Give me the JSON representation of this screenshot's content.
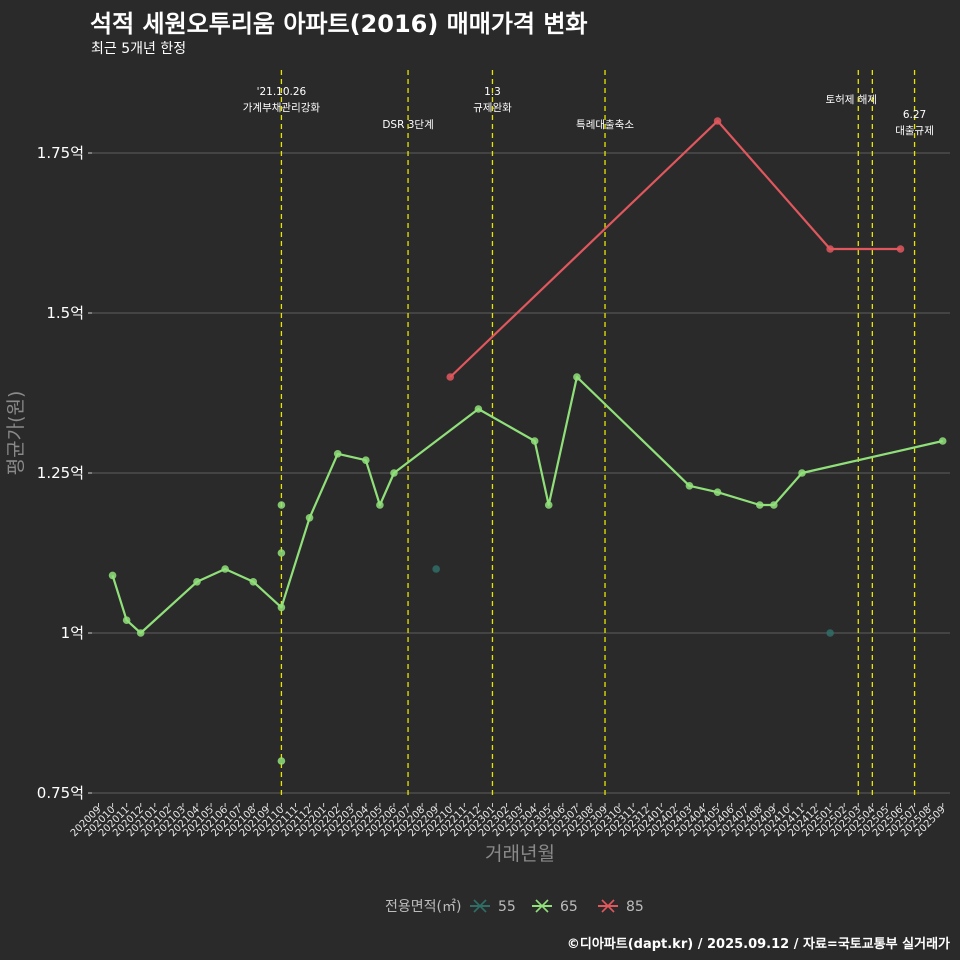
{
  "title": "석적 세원오투리움 아파트(2016) 매매가격 변화",
  "subtitle": "최근 5개년 한정",
  "caption": "©디아파트(dapt.kr) / 2025.09.12 / 자료=국토교통부 실거래가",
  "colors": {
    "background": "#2b2a2b",
    "grid": "#5f5f5f",
    "event_line": "#e5e500",
    "s55": "#2f6e66",
    "s65": "#90e07a",
    "s85": "#e0575d"
  },
  "chart_data": {
    "type": "line",
    "xlabel": "거래년월",
    "ylabel": "평균가(원)",
    "ylim": [
      0.75,
      1.84
    ],
    "yticks": [
      {
        "value": 0.75,
        "label": "0.75억"
      },
      {
        "value": 1.0,
        "label": "1억"
      },
      {
        "value": 1.25,
        "label": "1.25억"
      },
      {
        "value": 1.5,
        "label": "1.5억"
      },
      {
        "value": 1.75,
        "label": "1.75억"
      }
    ],
    "grid": true,
    "legend_position": "bottom",
    "legend_title": "전용면적(㎡)",
    "categories": [
      "202009",
      "202010",
      "202011",
      "202012",
      "202101",
      "202102",
      "202103",
      "202104",
      "202105",
      "202106",
      "202107",
      "202108",
      "202109",
      "202110",
      "202111",
      "202112",
      "202201",
      "202202",
      "202203",
      "202204",
      "202205",
      "202206",
      "202207",
      "202208",
      "202209",
      "202210",
      "202211",
      "202212",
      "202301",
      "202302",
      "202303",
      "202304",
      "202305",
      "202306",
      "202307",
      "202308",
      "202309",
      "202310",
      "202311",
      "202312",
      "202401",
      "202402",
      "202403",
      "202404",
      "202405",
      "202406",
      "202407",
      "202408",
      "202409",
      "202410",
      "202411",
      "202412",
      "202501",
      "202502",
      "202503",
      "202504",
      "202505",
      "202506",
      "202507",
      "202508",
      "202509"
    ],
    "series": [
      {
        "name": "55",
        "color": "#2f6e66",
        "line": false,
        "points": [
          {
            "x": "202209",
            "y": 1.1
          },
          {
            "x": "202501",
            "y": 1.0
          }
        ]
      },
      {
        "name": "65",
        "color": "#90e07a",
        "line": true,
        "points": [
          {
            "x": "202010",
            "y": 1.09
          },
          {
            "x": "202011",
            "y": 1.02
          },
          {
            "x": "202012",
            "y": 1.0
          },
          {
            "x": "202104",
            "y": 1.08
          },
          {
            "x": "202106",
            "y": 1.1
          },
          {
            "x": "202108",
            "y": 1.08
          },
          {
            "x": "202110",
            "y": 1.04
          },
          {
            "x": "202112",
            "y": 1.18
          },
          {
            "x": "202202",
            "y": 1.28
          },
          {
            "x": "202204",
            "y": 1.27
          },
          {
            "x": "202205",
            "y": 1.2
          },
          {
            "x": "202206",
            "y": 1.25
          },
          {
            "x": "202212",
            "y": 1.35
          },
          {
            "x": "202304",
            "y": 1.3
          },
          {
            "x": "202305",
            "y": 1.2
          },
          {
            "x": "202307",
            "y": 1.4
          },
          {
            "x": "202403",
            "y": 1.23
          },
          {
            "x": "202405",
            "y": 1.22
          },
          {
            "x": "202408",
            "y": 1.2
          },
          {
            "x": "202409",
            "y": 1.2
          },
          {
            "x": "202411",
            "y": 1.25
          },
          {
            "x": "202509",
            "y": 1.3
          }
        ],
        "extra_points": [
          {
            "x": "202110",
            "y": 1.2
          },
          {
            "x": "202110",
            "y": 1.125
          },
          {
            "x": "202110",
            "y": 0.8
          }
        ]
      },
      {
        "name": "85",
        "color": "#e0575d",
        "line": true,
        "points": [
          {
            "x": "202210",
            "y": 1.4
          },
          {
            "x": "202405",
            "y": 1.8
          },
          {
            "x": "202501",
            "y": 1.6
          },
          {
            "x": "202506",
            "y": 1.6
          }
        ]
      }
    ],
    "events": [
      {
        "x": "202110",
        "label": [
          "'21.10.26",
          "가계부채관리강화"
        ]
      },
      {
        "x": "202207",
        "label": [
          "DSR 3단계"
        ]
      },
      {
        "x": "202301",
        "label": [
          "1.3",
          "규제완화"
        ]
      },
      {
        "x": "202309",
        "label": [
          "특례대출축소"
        ]
      },
      {
        "x": "202503",
        "label": [
          "토허제 해제"
        ]
      },
      {
        "x": "202504",
        "label": []
      },
      {
        "x": "202507",
        "label": [
          "6.27",
          "대출규제"
        ]
      }
    ]
  }
}
